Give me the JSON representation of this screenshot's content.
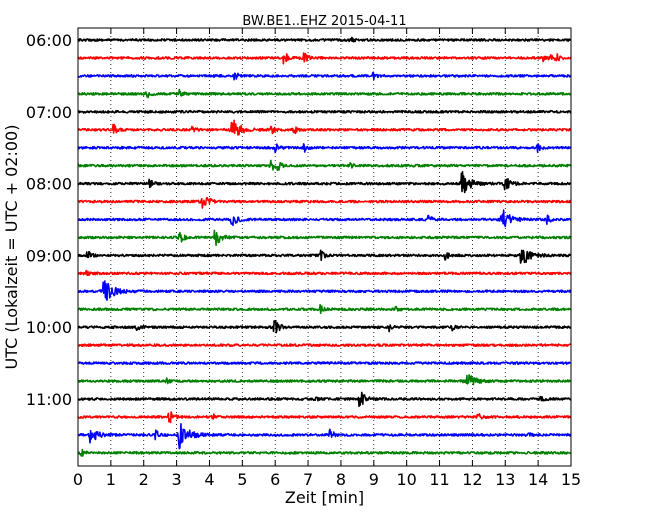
{
  "chart_data": {
    "type": "line",
    "title": "BW.BE1..EHZ 2015-04-11",
    "xlabel": "Zeit  [min]",
    "ylabel": "UTC (Lokalzeit = UTC + 02:00)",
    "xlim": [
      0,
      15
    ],
    "x_ticks": [
      "0",
      "1",
      "2",
      "3",
      "4",
      "5",
      "6",
      "7",
      "8",
      "9",
      "10",
      "11",
      "12",
      "13",
      "14",
      "15"
    ],
    "y_tick_labels": [
      "06:00",
      "07:00",
      "08:00",
      "09:00",
      "10:00",
      "11:00"
    ],
    "grid": "vertical dotted",
    "trace_colors": [
      "#000000",
      "#ff0000",
      "#0000ff",
      "#008000"
    ],
    "rows_start": "06:00",
    "row_minutes": 15,
    "traces": [
      {
        "start": "06:00",
        "color": "#000000",
        "events": [
          {
            "t": 8.3,
            "a": 0.3
          }
        ]
      },
      {
        "start": "06:15",
        "color": "#ff0000",
        "events": [
          {
            "t": 6.3,
            "a": 0.6
          },
          {
            "t": 6.9,
            "a": 0.5
          },
          {
            "t": 14.2,
            "a": 0.3
          },
          {
            "t": 14.4,
            "a": 0.3
          },
          {
            "t": 14.6,
            "a": 0.3
          }
        ]
      },
      {
        "start": "06:30",
        "color": "#0000ff",
        "events": [
          {
            "t": 4.8,
            "a": 0.4
          },
          {
            "t": 9.0,
            "a": 0.3
          }
        ]
      },
      {
        "start": "06:45",
        "color": "#008000",
        "events": [
          {
            "t": 2.1,
            "a": 0.5
          },
          {
            "t": 3.1,
            "a": 0.4
          }
        ]
      },
      {
        "start": "07:00",
        "color": "#000000",
        "events": []
      },
      {
        "start": "07:15",
        "color": "#ff0000",
        "events": [
          {
            "t": 1.1,
            "a": 0.5
          },
          {
            "t": 3.5,
            "a": 0.3
          },
          {
            "t": 4.7,
            "a": 1.2
          },
          {
            "t": 5.9,
            "a": 0.4
          },
          {
            "t": 6.6,
            "a": 0.4
          }
        ]
      },
      {
        "start": "07:30",
        "color": "#0000ff",
        "events": [
          {
            "t": 6.0,
            "a": 0.5
          },
          {
            "t": 6.9,
            "a": 0.4
          },
          {
            "t": 14.0,
            "a": 0.4
          }
        ]
      },
      {
        "start": "07:45",
        "color": "#008000",
        "events": [
          {
            "t": 5.9,
            "a": 0.5
          },
          {
            "t": 6.1,
            "a": 0.4
          },
          {
            "t": 8.3,
            "a": 0.2
          }
        ]
      },
      {
        "start": "08:00",
        "color": "#000000",
        "events": [
          {
            "t": 2.2,
            "a": 0.4
          },
          {
            "t": 11.7,
            "a": 1.2
          },
          {
            "t": 13.0,
            "a": 0.8
          }
        ]
      },
      {
        "start": "08:15",
        "color": "#ff0000",
        "events": [
          {
            "t": 3.8,
            "a": 0.9
          }
        ]
      },
      {
        "start": "08:30",
        "color": "#0000ff",
        "events": [
          {
            "t": 4.7,
            "a": 0.7
          },
          {
            "t": 10.7,
            "a": 0.4
          },
          {
            "t": 12.9,
            "a": 1.2
          },
          {
            "t": 14.3,
            "a": 0.4
          }
        ]
      },
      {
        "start": "08:45",
        "color": "#008000",
        "events": [
          {
            "t": 3.1,
            "a": 0.6
          },
          {
            "t": 4.2,
            "a": 0.8
          }
        ]
      },
      {
        "start": "09:00",
        "color": "#000000",
        "events": [
          {
            "t": 0.3,
            "a": 0.5
          },
          {
            "t": 7.4,
            "a": 0.5
          },
          {
            "t": 11.2,
            "a": 0.4
          },
          {
            "t": 13.5,
            "a": 1.2
          }
        ]
      },
      {
        "start": "09:15",
        "color": "#ff0000",
        "events": [
          {
            "t": 0.3,
            "a": 0.3
          }
        ]
      },
      {
        "start": "09:30",
        "color": "#0000ff",
        "events": [
          {
            "t": 0.8,
            "a": 1.4
          }
        ]
      },
      {
        "start": "09:45",
        "color": "#008000",
        "events": [
          {
            "t": 7.4,
            "a": 0.4
          },
          {
            "t": 9.7,
            "a": 0.2
          }
        ]
      },
      {
        "start": "10:00",
        "color": "#000000",
        "events": [
          {
            "t": 1.8,
            "a": 0.4
          },
          {
            "t": 6.0,
            "a": 0.7
          },
          {
            "t": 9.5,
            "a": 0.4
          },
          {
            "t": 11.4,
            "a": 0.4
          }
        ]
      },
      {
        "start": "10:15",
        "color": "#ff0000",
        "events": []
      },
      {
        "start": "10:30",
        "color": "#0000ff",
        "events": []
      },
      {
        "start": "10:45",
        "color": "#008000",
        "events": [
          {
            "t": 2.7,
            "a": 0.3
          },
          {
            "t": 11.8,
            "a": 1.1
          }
        ]
      },
      {
        "start": "11:00",
        "color": "#000000",
        "events": [
          {
            "t": 7.2,
            "a": 0.3
          },
          {
            "t": 8.6,
            "a": 0.8
          },
          {
            "t": 14.1,
            "a": 0.2
          }
        ]
      },
      {
        "start": "11:15",
        "color": "#ff0000",
        "events": [
          {
            "t": 2.8,
            "a": 0.6
          },
          {
            "t": 4.1,
            "a": 0.3
          },
          {
            "t": 12.2,
            "a": 0.3
          }
        ]
      },
      {
        "start": "11:30",
        "color": "#0000ff",
        "events": [
          {
            "t": 0.4,
            "a": 0.9
          },
          {
            "t": 2.4,
            "a": 0.5
          },
          {
            "t": 3.1,
            "a": 1.4
          },
          {
            "t": 7.7,
            "a": 0.5
          },
          {
            "t": 13.7,
            "a": 0.3
          }
        ]
      },
      {
        "start": "11:45",
        "color": "#008000",
        "events": [
          {
            "t": 0.1,
            "a": 0.4
          }
        ]
      }
    ]
  }
}
